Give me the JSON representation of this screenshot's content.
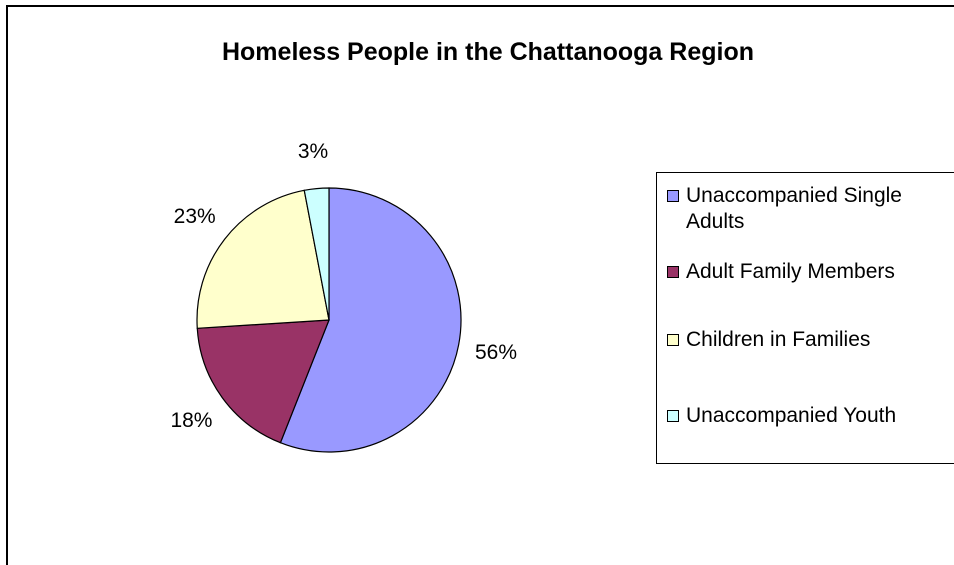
{
  "chart_data": {
    "type": "pie",
    "title": "Homeless People in the Chattanooga Region",
    "slices": [
      {
        "label": "Unaccompanied Single Adults",
        "value": 56,
        "display": "56%",
        "color": "#9999FF"
      },
      {
        "label": "Adult Family Members",
        "value": 18,
        "display": "18%",
        "color": "#993366"
      },
      {
        "label": "Children in Families",
        "value": 23,
        "display": "23%",
        "color": "#FFFFCC"
      },
      {
        "label": "Unaccompanied Youth",
        "value": 3,
        "display": "3%",
        "color": "#CCFFFF"
      }
    ],
    "legend_position": "right"
  }
}
